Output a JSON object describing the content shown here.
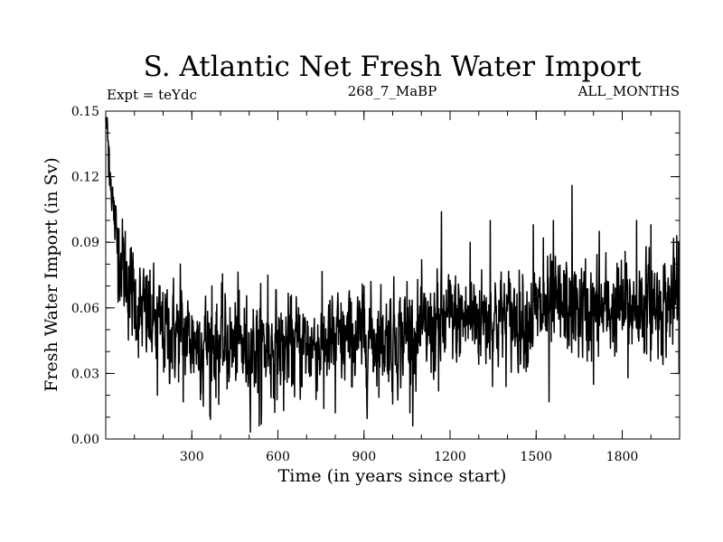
{
  "chart_data": {
    "type": "line",
    "title": "S. Atlantic Net Fresh Water Import",
    "subtitle_left": "Expt = teYdc",
    "subtitle_center": "268_7_MaBP",
    "subtitle_right": "ALL_MONTHS",
    "xlabel": "Time (in years since start)",
    "ylabel": "Fresh Water Import (in Sv)",
    "xlim": [
      0,
      2000
    ],
    "ylim": [
      0.0,
      0.15
    ],
    "x_ticks": [
      300,
      600,
      900,
      1200,
      1500,
      1800
    ],
    "x_tick_labels": [
      "300",
      "600",
      "900",
      "1200",
      "1500",
      "1800"
    ],
    "y_ticks": [
      0.0,
      0.03,
      0.06,
      0.09,
      0.12,
      0.15
    ],
    "y_tick_labels": [
      "0.00",
      "0.03",
      "0.06",
      "0.09",
      "0.12",
      "0.15"
    ],
    "x_minor_step": 100,
    "y_minor_step": 0.01,
    "line_color": "#000000",
    "series": [
      {
        "name": "Net Fresh Water Import",
        "trend": [
          [
            0,
            0.147
          ],
          [
            5,
            0.14
          ],
          [
            15,
            0.125
          ],
          [
            30,
            0.1
          ],
          [
            50,
            0.085
          ],
          [
            80,
            0.07
          ],
          [
            120,
            0.058
          ],
          [
            200,
            0.05
          ],
          [
            300,
            0.046
          ],
          [
            400,
            0.043
          ],
          [
            500,
            0.042
          ],
          [
            600,
            0.042
          ],
          [
            700,
            0.043
          ],
          [
            800,
            0.044
          ],
          [
            900,
            0.046
          ],
          [
            1000,
            0.047
          ],
          [
            1100,
            0.048
          ],
          [
            1200,
            0.054
          ],
          [
            1300,
            0.056
          ],
          [
            1400,
            0.055
          ],
          [
            1500,
            0.057
          ],
          [
            1600,
            0.06
          ],
          [
            1700,
            0.058
          ],
          [
            1800,
            0.06
          ],
          [
            1900,
            0.061
          ],
          [
            2000,
            0.063
          ]
        ],
        "noise_sd": 0.011,
        "peaks": [
          [
            0,
            0.147
          ],
          [
            4,
            0.145
          ],
          [
            10,
            0.12
          ],
          [
            20,
            0.108
          ],
          [
            28,
            0.1
          ],
          [
            40,
            0.085
          ],
          [
            52,
            0.083
          ],
          [
            80,
            0.079
          ],
          [
            150,
            0.072
          ],
          [
            260,
            0.08
          ],
          [
            370,
            0.07
          ],
          [
            465,
            0.068
          ],
          [
            565,
            0.075
          ],
          [
            900,
            0.07
          ],
          [
            1050,
            0.072
          ],
          [
            1170,
            0.104
          ],
          [
            1270,
            0.09
          ],
          [
            1340,
            0.1
          ],
          [
            1490,
            0.098
          ],
          [
            1525,
            0.092
          ],
          [
            1560,
            0.1
          ],
          [
            1625,
            0.116
          ],
          [
            1720,
            0.095
          ],
          [
            1850,
            0.1
          ],
          [
            1900,
            0.098
          ],
          [
            1990,
            0.093
          ]
        ],
        "troughs": [
          [
            180,
            0.02
          ],
          [
            270,
            0.017
          ],
          [
            340,
            0.015
          ],
          [
            365,
            0.009
          ],
          [
            535,
            0.006
          ],
          [
            620,
            0.013
          ],
          [
            760,
            0.014
          ],
          [
            800,
            0.012
          ],
          [
            1000,
            0.016
          ],
          [
            1060,
            0.012
          ],
          [
            1160,
            0.022
          ],
          [
            1545,
            0.017
          ],
          [
            1700,
            0.025
          ],
          [
            1820,
            0.028
          ],
          [
            1998,
            0.03
          ]
        ]
      }
    ]
  }
}
